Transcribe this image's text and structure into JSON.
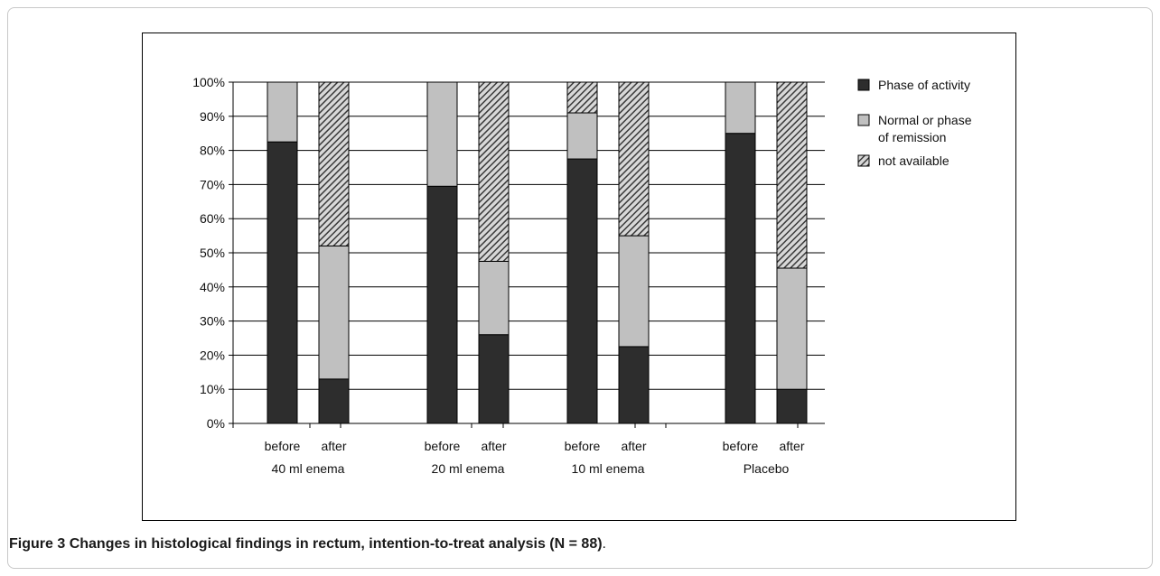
{
  "figure": {
    "label": "Figure 3",
    "caption": "Changes in histological findings in rectum, intention-to-treat analysis (N = 88)",
    "caption_end": "."
  },
  "chart_data": {
    "type": "bar",
    "stacked": true,
    "percent": true,
    "ylim": [
      0,
      100
    ],
    "yticks": [
      "0%",
      "10%",
      "20%",
      "30%",
      "40%",
      "50%",
      "60%",
      "70%",
      "80%",
      "90%",
      "100%"
    ],
    "categories": [
      "before",
      "after",
      "before",
      "after",
      "before",
      "after",
      "before",
      "after"
    ],
    "groups": [
      {
        "label": "40 ml enema",
        "bars": [
          0,
          1
        ]
      },
      {
        "label": "20 ml enema",
        "bars": [
          2,
          3
        ]
      },
      {
        "label": "10 ml enema",
        "bars": [
          4,
          5
        ]
      },
      {
        "label": "Placebo",
        "bars": [
          6,
          7
        ]
      }
    ],
    "series": [
      {
        "name": "Phase of activity",
        "color": "#2d2d2d",
        "pattern": "solid",
        "values": [
          82.5,
          13,
          69.5,
          26,
          77.5,
          22.5,
          85,
          10
        ]
      },
      {
        "name": "Normal or phase of remission",
        "color": "#c0c0c0",
        "pattern": "solid",
        "values": [
          17.5,
          39,
          30.5,
          21.5,
          13.5,
          32.5,
          15,
          35.5
        ]
      },
      {
        "name": "not available",
        "color": "#4a4a4a",
        "pattern": "hatch",
        "values": [
          0,
          48,
          0,
          52.5,
          9,
          45,
          0,
          54.5
        ]
      }
    ],
    "legend_position": "right",
    "grid": true
  }
}
